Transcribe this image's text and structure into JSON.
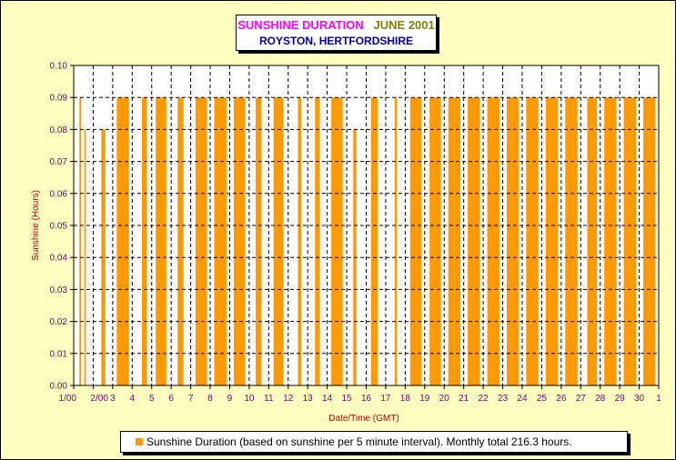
{
  "title": {
    "part1": "SUNSHINE DURATION",
    "part2": "JUNE 2001",
    "subtitle": "ROYSTON, HERTFORDSHIRE"
  },
  "chart_data": {
    "type": "area",
    "title": "SUNSHINE DURATION JUNE 2001",
    "subtitle": "ROYSTON, HERTFORDSHIRE",
    "xlabel": "Date/Time (GMT)",
    "ylabel": "Sunshine (Hours)",
    "ylim": [
      0,
      0.1
    ],
    "y_ticks": [
      "0.00",
      "0.01",
      "0.02",
      "0.03",
      "0.04",
      "0.05",
      "0.06",
      "0.07",
      "0.08",
      "0.09",
      "0.10"
    ],
    "x_ticks": [
      "1/00",
      "2/00",
      "3",
      "4",
      "5",
      "6",
      "7",
      "8",
      "9",
      "10",
      "11",
      "12",
      "13",
      "14",
      "15",
      "16",
      "17",
      "18",
      "19",
      "20",
      "21",
      "22",
      "23",
      "24",
      "25",
      "26",
      "27",
      "28",
      "29",
      "30",
      "1"
    ],
    "grid": true,
    "series": [
      {
        "name": "Sunshine Duration",
        "color": "#ff9900",
        "x_unit": "day of June 2001 (GMT)",
        "sunny_periods": [
          {
            "day": 1,
            "start": "07:00",
            "end": "09:00",
            "level": 0.09
          },
          {
            "day": 1,
            "start": "13:00",
            "end": "15:00",
            "level": 0.08
          },
          {
            "day": 2,
            "start": "10:00",
            "end": "15:00",
            "level": 0.08
          },
          {
            "day": 3,
            "start": "05:00",
            "end": "20:00",
            "level": 0.09
          },
          {
            "day": 4,
            "start": "12:00",
            "end": "18:00",
            "level": 0.09
          },
          {
            "day": 5,
            "start": "05:00",
            "end": "18:00",
            "level": 0.09
          },
          {
            "day": 6,
            "start": "08:00",
            "end": "15:00",
            "level": 0.09
          },
          {
            "day": 7,
            "start": "06:00",
            "end": "20:00",
            "level": 0.09
          },
          {
            "day": 8,
            "start": "05:00",
            "end": "20:00",
            "level": 0.09
          },
          {
            "day": 9,
            "start": "05:00",
            "end": "19:00",
            "level": 0.09
          },
          {
            "day": 10,
            "start": "08:00",
            "end": "15:00",
            "level": 0.09
          },
          {
            "day": 11,
            "start": "06:00",
            "end": "18:00",
            "level": 0.09
          },
          {
            "day": 12,
            "start": "12:00",
            "end": "16:00",
            "level": 0.09
          },
          {
            "day": 13,
            "start": "09:00",
            "end": "15:00",
            "level": 0.09
          },
          {
            "day": 14,
            "start": "05:00",
            "end": "19:00",
            "level": 0.09
          },
          {
            "day": 15,
            "start": "08:00",
            "end": "12:00",
            "level": 0.08
          },
          {
            "day": 16,
            "start": "06:00",
            "end": "14:00",
            "level": 0.09
          },
          {
            "day": 17,
            "start": "11:00",
            "end": "14:00",
            "level": 0.09
          },
          {
            "day": 18,
            "start": "06:00",
            "end": "20:00",
            "level": 0.09
          },
          {
            "day": 19,
            "start": "06:00",
            "end": "20:00",
            "level": 0.09
          },
          {
            "day": 20,
            "start": "05:00",
            "end": "20:00",
            "level": 0.09
          },
          {
            "day": 21,
            "start": "05:00",
            "end": "20:00",
            "level": 0.09
          },
          {
            "day": 22,
            "start": "05:00",
            "end": "20:00",
            "level": 0.09
          },
          {
            "day": 23,
            "start": "05:00",
            "end": "20:00",
            "level": 0.09
          },
          {
            "day": 24,
            "start": "05:00",
            "end": "20:00",
            "level": 0.09
          },
          {
            "day": 25,
            "start": "05:00",
            "end": "20:00",
            "level": 0.09
          },
          {
            "day": 26,
            "start": "05:00",
            "end": "20:00",
            "level": 0.09
          },
          {
            "day": 27,
            "start": "08:00",
            "end": "20:00",
            "level": 0.09
          },
          {
            "day": 28,
            "start": "05:00",
            "end": "20:00",
            "level": 0.09
          },
          {
            "day": 29,
            "start": "05:00",
            "end": "20:00",
            "level": 0.09
          },
          {
            "day": 30,
            "start": "05:00",
            "end": "20:00",
            "level": 0.09
          }
        ]
      }
    ],
    "legend": {
      "position": "bottom",
      "text": "Sunshine Duration (based on sunshine per 5 minute interval). Monthly total 216.3 hours."
    }
  }
}
